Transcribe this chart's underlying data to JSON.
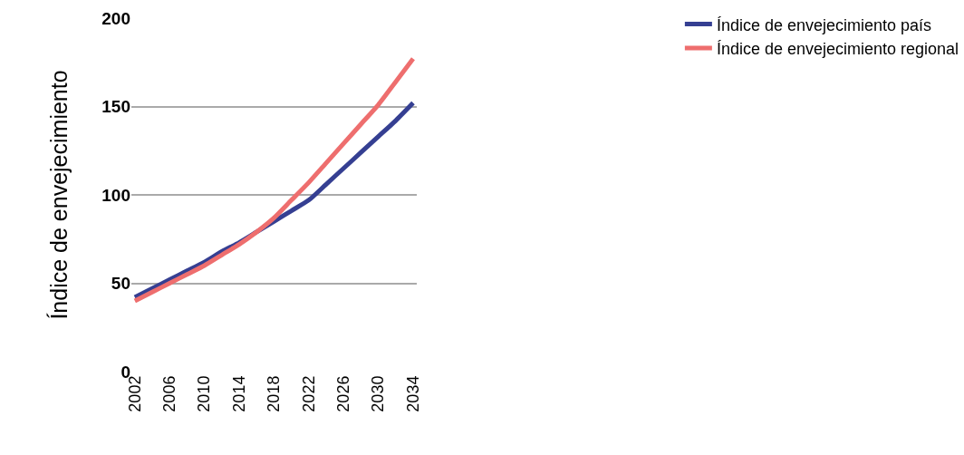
{
  "chart_data": {
    "type": "line",
    "ylabel": "Índice de envejecimiento",
    "x": [
      2002,
      2004,
      2006,
      2008,
      2010,
      2012,
      2014,
      2016,
      2018,
      2020,
      2022,
      2024,
      2026,
      2028,
      2030,
      2032,
      2034
    ],
    "series": [
      {
        "name": "Índice de envejecimiento país",
        "color": "#353f92",
        "values": [
          42,
          47,
          52,
          57,
          62,
          68,
          73,
          79,
          85,
          91,
          97,
          106,
          115,
          124,
          133,
          142,
          152
        ]
      },
      {
        "name": "Índice de envejecimiento regional",
        "color": "#ee6e6e",
        "values": [
          40,
          45,
          50,
          55,
          60,
          66,
          72,
          79,
          87,
          97,
          107,
          118,
          129,
          140,
          151,
          164,
          177
        ]
      }
    ],
    "xlim": [
      2001.6,
      2034.4
    ],
    "xticks": [
      2002,
      2006,
      2010,
      2014,
      2018,
      2022,
      2026,
      2030,
      2034
    ],
    "ylim": [
      0,
      200
    ],
    "yticks": [
      0,
      50,
      100,
      150,
      200
    ],
    "grid": "y",
    "legend": "top right",
    "marker": "none",
    "line_style": "solid"
  }
}
